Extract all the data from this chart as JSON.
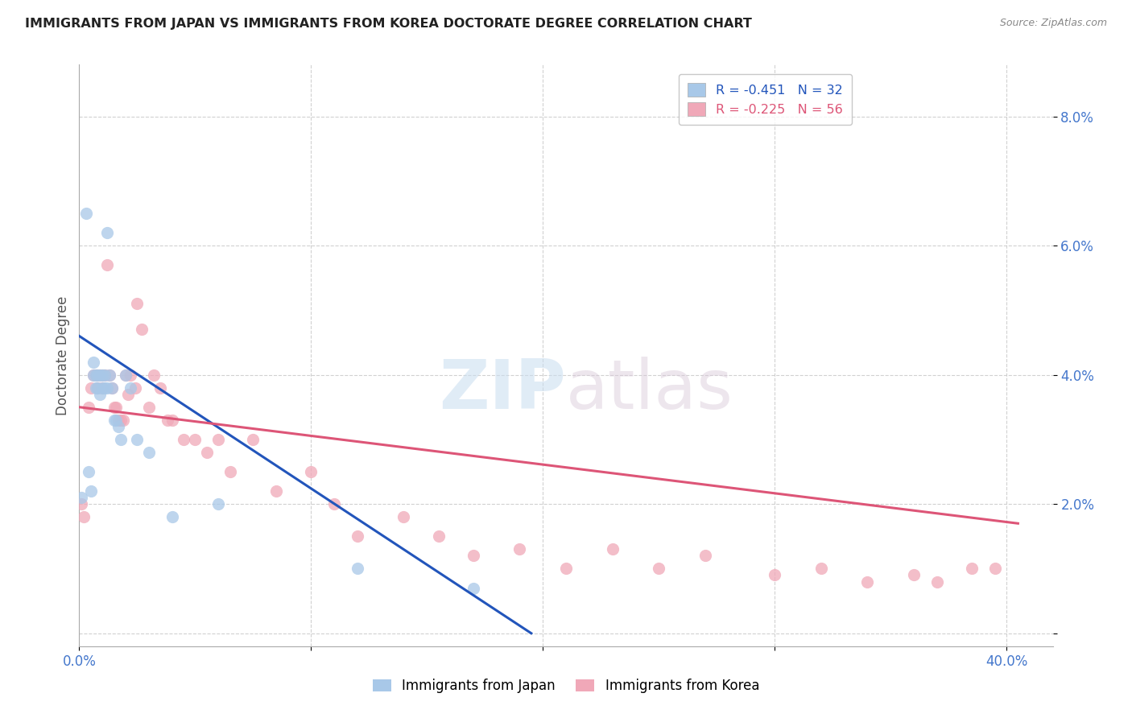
{
  "title": "IMMIGRANTS FROM JAPAN VS IMMIGRANTS FROM KOREA DOCTORATE DEGREE CORRELATION CHART",
  "source": "Source: ZipAtlas.com",
  "ylabel": "Doctorate Degree",
  "yticks": [
    0.0,
    0.02,
    0.04,
    0.06,
    0.08
  ],
  "ytick_labels": [
    "",
    "2.0%",
    "4.0%",
    "6.0%",
    "8.0%"
  ],
  "xlim": [
    0.0,
    0.42
  ],
  "ylim": [
    -0.002,
    0.088
  ],
  "japan_color": "#a8c8e8",
  "korea_color": "#f0a8b8",
  "japan_line_color": "#2255bb",
  "korea_line_color": "#dd5577",
  "legend_japan_r": "-0.451",
  "legend_japan_n": "32",
  "legend_korea_r": "-0.225",
  "legend_korea_n": "56",
  "japan_x": [
    0.001,
    0.003,
    0.004,
    0.005,
    0.006,
    0.006,
    0.007,
    0.007,
    0.008,
    0.008,
    0.009,
    0.009,
    0.01,
    0.01,
    0.011,
    0.011,
    0.012,
    0.012,
    0.013,
    0.014,
    0.015,
    0.016,
    0.017,
    0.018,
    0.02,
    0.022,
    0.025,
    0.03,
    0.04,
    0.06,
    0.12,
    0.17
  ],
  "japan_y": [
    0.021,
    0.065,
    0.025,
    0.022,
    0.04,
    0.042,
    0.038,
    0.04,
    0.038,
    0.04,
    0.037,
    0.04,
    0.04,
    0.038,
    0.038,
    0.04,
    0.038,
    0.062,
    0.04,
    0.038,
    0.033,
    0.033,
    0.032,
    0.03,
    0.04,
    0.038,
    0.03,
    0.028,
    0.018,
    0.02,
    0.01,
    0.007
  ],
  "korea_x": [
    0.001,
    0.002,
    0.004,
    0.005,
    0.006,
    0.007,
    0.008,
    0.008,
    0.009,
    0.01,
    0.01,
    0.011,
    0.012,
    0.013,
    0.014,
    0.015,
    0.016,
    0.017,
    0.018,
    0.019,
    0.02,
    0.021,
    0.022,
    0.024,
    0.025,
    0.027,
    0.03,
    0.032,
    0.035,
    0.038,
    0.04,
    0.045,
    0.05,
    0.055,
    0.06,
    0.065,
    0.075,
    0.085,
    0.1,
    0.11,
    0.12,
    0.14,
    0.155,
    0.17,
    0.19,
    0.21,
    0.23,
    0.25,
    0.27,
    0.3,
    0.32,
    0.34,
    0.36,
    0.37,
    0.385,
    0.395
  ],
  "korea_y": [
    0.02,
    0.018,
    0.035,
    0.038,
    0.04,
    0.04,
    0.038,
    0.04,
    0.04,
    0.038,
    0.04,
    0.04,
    0.057,
    0.04,
    0.038,
    0.035,
    0.035,
    0.033,
    0.033,
    0.033,
    0.04,
    0.037,
    0.04,
    0.038,
    0.051,
    0.047,
    0.035,
    0.04,
    0.038,
    0.033,
    0.033,
    0.03,
    0.03,
    0.028,
    0.03,
    0.025,
    0.03,
    0.022,
    0.025,
    0.02,
    0.015,
    0.018,
    0.015,
    0.012,
    0.013,
    0.01,
    0.013,
    0.01,
    0.012,
    0.009,
    0.01,
    0.008,
    0.009,
    0.008,
    0.01,
    0.01
  ],
  "japan_line_x": [
    0.0,
    0.195
  ],
  "japan_line_y": [
    0.046,
    0.0
  ],
  "korea_line_x": [
    0.0,
    0.405
  ],
  "korea_line_y": [
    0.035,
    0.017
  ]
}
